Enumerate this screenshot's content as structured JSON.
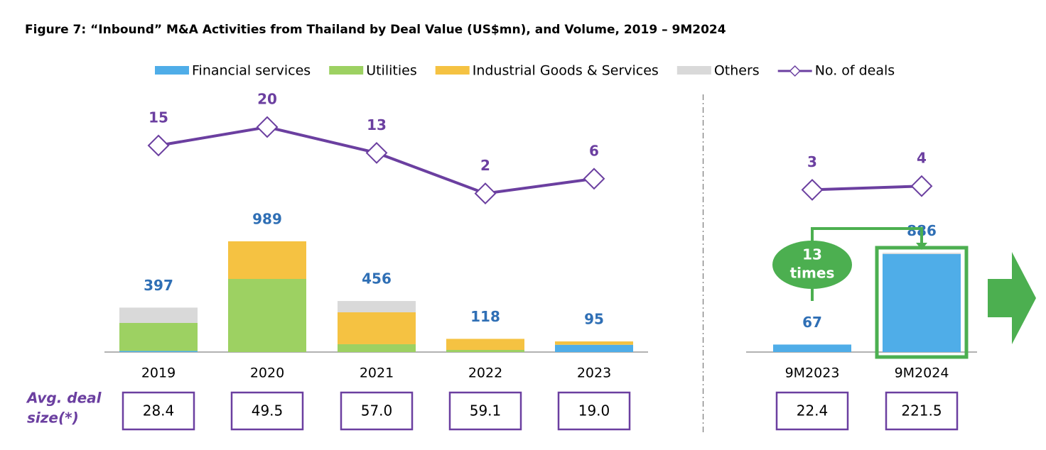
{
  "chart_data": {
    "type": "bar",
    "title": "Figure 7: “Inbound” M&A Activities from Thailand by Deal Value (US$mn), and Volume, 2019 – 9M2024",
    "categories": [
      "2019",
      "2020",
      "2021",
      "2022",
      "2023",
      "9M2023",
      "9M2024"
    ],
    "stacked": true,
    "series": [
      {
        "name": "Financial services",
        "color": "#4fade8",
        "values": [
          10,
          0,
          0,
          0,
          65,
          67,
          876
        ]
      },
      {
        "name": "Utilities",
        "color": "#9dd162",
        "values": [
          250,
          653,
          70,
          19,
          0,
          0,
          0
        ]
      },
      {
        "name": "Industrial Goods & Services",
        "color": "#f5c242",
        "values": [
          0,
          336,
          285,
          99,
          30,
          0,
          0
        ]
      },
      {
        "name": "Others",
        "color": "#d9d9d9",
        "values": [
          137,
          0,
          101,
          0,
          0,
          0,
          10
        ]
      }
    ],
    "totals": [
      397,
      989,
      456,
      118,
      95,
      67,
      886
    ],
    "line": {
      "name": "No. of deals",
      "color": "#6b3fa0",
      "values": [
        15,
        20,
        13,
        2,
        6,
        3,
        4
      ]
    },
    "divider_after": 4,
    "avg_label": [
      "Avg. deal",
      "size(*)"
    ],
    "avg_deal_size": [
      "28.4",
      "49.5",
      "57.0",
      "59.1",
      "19.0",
      "22.4",
      "221.5"
    ],
    "annotation": [
      "13",
      "times"
    ]
  }
}
